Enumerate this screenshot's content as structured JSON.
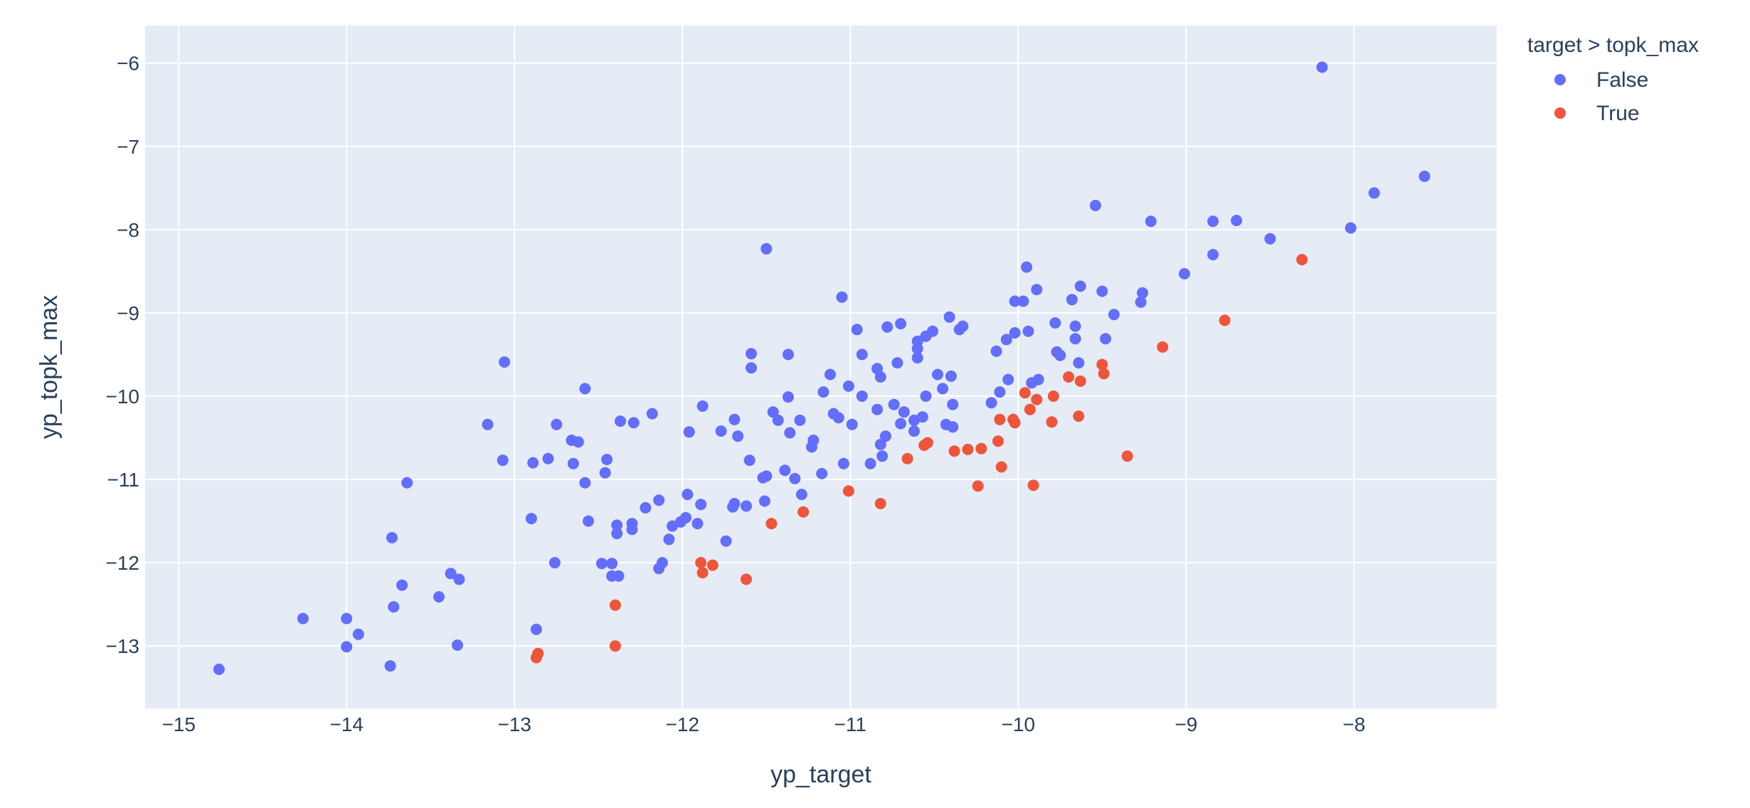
{
  "chart_data": {
    "type": "scatter",
    "xlabel": "yp_target",
    "ylabel": "yp_topk_max",
    "xlim": [
      -15.2,
      -7.15
    ],
    "ylim": [
      -13.75,
      -5.55
    ],
    "x_ticks": [
      -15,
      -14,
      -13,
      -12,
      -11,
      -10,
      -9,
      -8
    ],
    "y_ticks": [
      -13,
      -12,
      -11,
      -10,
      -9,
      -8,
      -7,
      -6
    ],
    "x_tick_labels": [
      "−15",
      "−14",
      "−13",
      "−12",
      "−11",
      "−10",
      "−9",
      "−8"
    ],
    "y_tick_labels": [
      "−13",
      "−12",
      "−11",
      "−10",
      "−9",
      "−8",
      "−7",
      "−6"
    ],
    "grid": true,
    "legend": {
      "title": "target > topk_max",
      "position": "top-right",
      "entries": [
        "False",
        "True"
      ]
    },
    "colors": {
      "False": "#636efa",
      "True": "#ef553b",
      "plot_bg": "#e5ecf6",
      "grid": "#ffffff"
    },
    "series": [
      {
        "name": "False",
        "points": [
          [
            -14.76,
            -13.28
          ],
          [
            -14.26,
            -12.67
          ],
          [
            -14.0,
            -12.67
          ],
          [
            -14.0,
            -13.01
          ],
          [
            -13.93,
            -12.86
          ],
          [
            -13.74,
            -13.24
          ],
          [
            -13.73,
            -11.7
          ],
          [
            -13.72,
            -12.53
          ],
          [
            -13.67,
            -12.27
          ],
          [
            -13.64,
            -11.04
          ],
          [
            -13.45,
            -12.41
          ],
          [
            -13.38,
            -12.13
          ],
          [
            -13.34,
            -12.99
          ],
          [
            -13.33,
            -12.2
          ],
          [
            -13.16,
            -10.34
          ],
          [
            -13.07,
            -10.77
          ],
          [
            -13.06,
            -9.59
          ],
          [
            -12.9,
            -11.47
          ],
          [
            -12.89,
            -10.8
          ],
          [
            -12.87,
            -12.8
          ],
          [
            -12.8,
            -10.75
          ],
          [
            -12.76,
            -12.0
          ],
          [
            -12.75,
            -10.34
          ],
          [
            -12.66,
            -10.53
          ],
          [
            -12.65,
            -10.81
          ],
          [
            -12.62,
            -10.55
          ],
          [
            -12.58,
            -11.04
          ],
          [
            -12.58,
            -9.91
          ],
          [
            -12.56,
            -11.5
          ],
          [
            -12.48,
            -12.01
          ],
          [
            -12.46,
            -10.92
          ],
          [
            -12.45,
            -10.76
          ],
          [
            -12.42,
            -12.01
          ],
          [
            -12.42,
            -12.16
          ],
          [
            -12.38,
            -12.16
          ],
          [
            -12.39,
            -11.55
          ],
          [
            -12.39,
            -11.65
          ],
          [
            -12.37,
            -10.3
          ],
          [
            -12.3,
            -11.53
          ],
          [
            -12.3,
            -11.6
          ],
          [
            -12.29,
            -10.32
          ],
          [
            -12.22,
            -11.34
          ],
          [
            -12.18,
            -10.21
          ],
          [
            -12.14,
            -11.25
          ],
          [
            -12.14,
            -12.07
          ],
          [
            -12.12,
            -12.0
          ],
          [
            -12.08,
            -11.72
          ],
          [
            -12.06,
            -11.56
          ],
          [
            -12.01,
            -11.51
          ],
          [
            -11.98,
            -11.46
          ],
          [
            -11.97,
            -11.18
          ],
          [
            -11.96,
            -10.43
          ],
          [
            -11.91,
            -11.53
          ],
          [
            -11.89,
            -11.3
          ],
          [
            -11.88,
            -10.12
          ],
          [
            -11.77,
            -10.42
          ],
          [
            -11.74,
            -11.74
          ],
          [
            -11.7,
            -11.33
          ],
          [
            -11.69,
            -11.29
          ],
          [
            -11.69,
            -10.28
          ],
          [
            -11.67,
            -10.48
          ],
          [
            -11.62,
            -11.32
          ],
          [
            -11.6,
            -10.77
          ],
          [
            -11.59,
            -9.66
          ],
          [
            -11.59,
            -9.49
          ],
          [
            -11.52,
            -10.98
          ],
          [
            -11.51,
            -11.26
          ],
          [
            -11.5,
            -10.96
          ],
          [
            -11.5,
            -8.23
          ],
          [
            -11.46,
            -10.19
          ],
          [
            -11.43,
            -10.29
          ],
          [
            -11.39,
            -10.89
          ],
          [
            -11.37,
            -10.01
          ],
          [
            -11.37,
            -9.5
          ],
          [
            -11.36,
            -10.44
          ],
          [
            -11.33,
            -10.99
          ],
          [
            -11.3,
            -10.29
          ],
          [
            -11.29,
            -11.18
          ],
          [
            -11.23,
            -10.61
          ],
          [
            -11.22,
            -10.53
          ],
          [
            -11.17,
            -10.93
          ],
          [
            -11.16,
            -9.95
          ],
          [
            -11.12,
            -9.74
          ],
          [
            -11.1,
            -10.21
          ],
          [
            -11.07,
            -10.26
          ],
          [
            -11.05,
            -8.81
          ],
          [
            -11.04,
            -10.81
          ],
          [
            -11.01,
            -9.88
          ],
          [
            -10.99,
            -10.34
          ],
          [
            -10.96,
            -9.2
          ],
          [
            -10.93,
            -9.5
          ],
          [
            -10.93,
            -10.0
          ],
          [
            -10.88,
            -10.81
          ],
          [
            -10.84,
            -9.67
          ],
          [
            -10.84,
            -10.16
          ],
          [
            -10.82,
            -9.77
          ],
          [
            -10.82,
            -10.58
          ],
          [
            -10.81,
            -10.72
          ],
          [
            -10.79,
            -10.48
          ],
          [
            -10.78,
            -9.17
          ],
          [
            -10.74,
            -10.1
          ],
          [
            -10.72,
            -9.6
          ],
          [
            -10.7,
            -10.33
          ],
          [
            -10.7,
            -9.13
          ],
          [
            -10.68,
            -10.19
          ],
          [
            -10.62,
            -10.29
          ],
          [
            -10.62,
            -10.42
          ],
          [
            -10.6,
            -9.34
          ],
          [
            -10.6,
            -9.43
          ],
          [
            -10.6,
            -9.54
          ],
          [
            -10.57,
            -10.25
          ],
          [
            -10.55,
            -10.0
          ],
          [
            -10.55,
            -9.28
          ],
          [
            -10.51,
            -9.22
          ],
          [
            -10.48,
            -9.74
          ],
          [
            -10.45,
            -9.91
          ],
          [
            -10.43,
            -10.34
          ],
          [
            -10.41,
            -9.05
          ],
          [
            -10.4,
            -9.76
          ],
          [
            -10.39,
            -10.1
          ],
          [
            -10.39,
            -10.37
          ],
          [
            -10.35,
            -9.2
          ],
          [
            -10.33,
            -9.16
          ],
          [
            -10.16,
            -10.08
          ],
          [
            -10.13,
            -9.46
          ],
          [
            -10.11,
            -9.95
          ],
          [
            -10.07,
            -9.32
          ],
          [
            -10.06,
            -9.8
          ],
          [
            -10.02,
            -9.24
          ],
          [
            -10.02,
            -8.86
          ],
          [
            -9.97,
            -8.86
          ],
          [
            -9.95,
            -8.45
          ],
          [
            -9.94,
            -9.22
          ],
          [
            -9.92,
            -9.84
          ],
          [
            -9.89,
            -8.72
          ],
          [
            -9.88,
            -9.8
          ],
          [
            -9.78,
            -9.12
          ],
          [
            -9.77,
            -9.47
          ],
          [
            -9.75,
            -9.51
          ],
          [
            -9.68,
            -8.84
          ],
          [
            -9.66,
            -9.16
          ],
          [
            -9.66,
            -9.31
          ],
          [
            -9.64,
            -9.6
          ],
          [
            -9.63,
            -8.68
          ],
          [
            -9.54,
            -7.71
          ],
          [
            -9.5,
            -8.74
          ],
          [
            -9.48,
            -9.31
          ],
          [
            -9.43,
            -9.02
          ],
          [
            -9.27,
            -8.87
          ],
          [
            -9.26,
            -8.76
          ],
          [
            -9.21,
            -7.9
          ],
          [
            -9.01,
            -8.53
          ],
          [
            -8.84,
            -8.3
          ],
          [
            -8.84,
            -7.9
          ],
          [
            -8.7,
            -7.89
          ],
          [
            -8.5,
            -8.11
          ],
          [
            -8.19,
            -6.05
          ],
          [
            -8.02,
            -7.98
          ],
          [
            -7.88,
            -7.56
          ],
          [
            -7.58,
            -7.36
          ]
        ]
      },
      {
        "name": "True",
        "points": [
          [
            -12.87,
            -13.14
          ],
          [
            -12.86,
            -13.09
          ],
          [
            -12.4,
            -13.0
          ],
          [
            -12.4,
            -12.51
          ],
          [
            -11.89,
            -12.0
          ],
          [
            -11.88,
            -12.12
          ],
          [
            -11.82,
            -12.03
          ],
          [
            -11.62,
            -12.2
          ],
          [
            -11.47,
            -11.53
          ],
          [
            -11.28,
            -11.39
          ],
          [
            -11.01,
            -11.14
          ],
          [
            -10.82,
            -11.29
          ],
          [
            -10.66,
            -10.75
          ],
          [
            -10.56,
            -10.59
          ],
          [
            -10.54,
            -10.56
          ],
          [
            -10.38,
            -10.66
          ],
          [
            -10.3,
            -10.64
          ],
          [
            -10.24,
            -11.08
          ],
          [
            -10.22,
            -10.63
          ],
          [
            -10.12,
            -10.54
          ],
          [
            -10.11,
            -10.28
          ],
          [
            -10.1,
            -10.85
          ],
          [
            -10.03,
            -10.28
          ],
          [
            -10.02,
            -10.32
          ],
          [
            -9.96,
            -9.96
          ],
          [
            -9.93,
            -10.16
          ],
          [
            -9.91,
            -11.07
          ],
          [
            -9.89,
            -10.04
          ],
          [
            -9.8,
            -10.31
          ],
          [
            -9.79,
            -10.0
          ],
          [
            -9.7,
            -9.77
          ],
          [
            -9.64,
            -10.24
          ],
          [
            -9.63,
            -9.82
          ],
          [
            -9.5,
            -9.62
          ],
          [
            -9.49,
            -9.73
          ],
          [
            -9.35,
            -10.72
          ],
          [
            -9.14,
            -9.41
          ],
          [
            -8.77,
            -9.09
          ],
          [
            -8.31,
            -8.36
          ]
        ]
      }
    ]
  }
}
